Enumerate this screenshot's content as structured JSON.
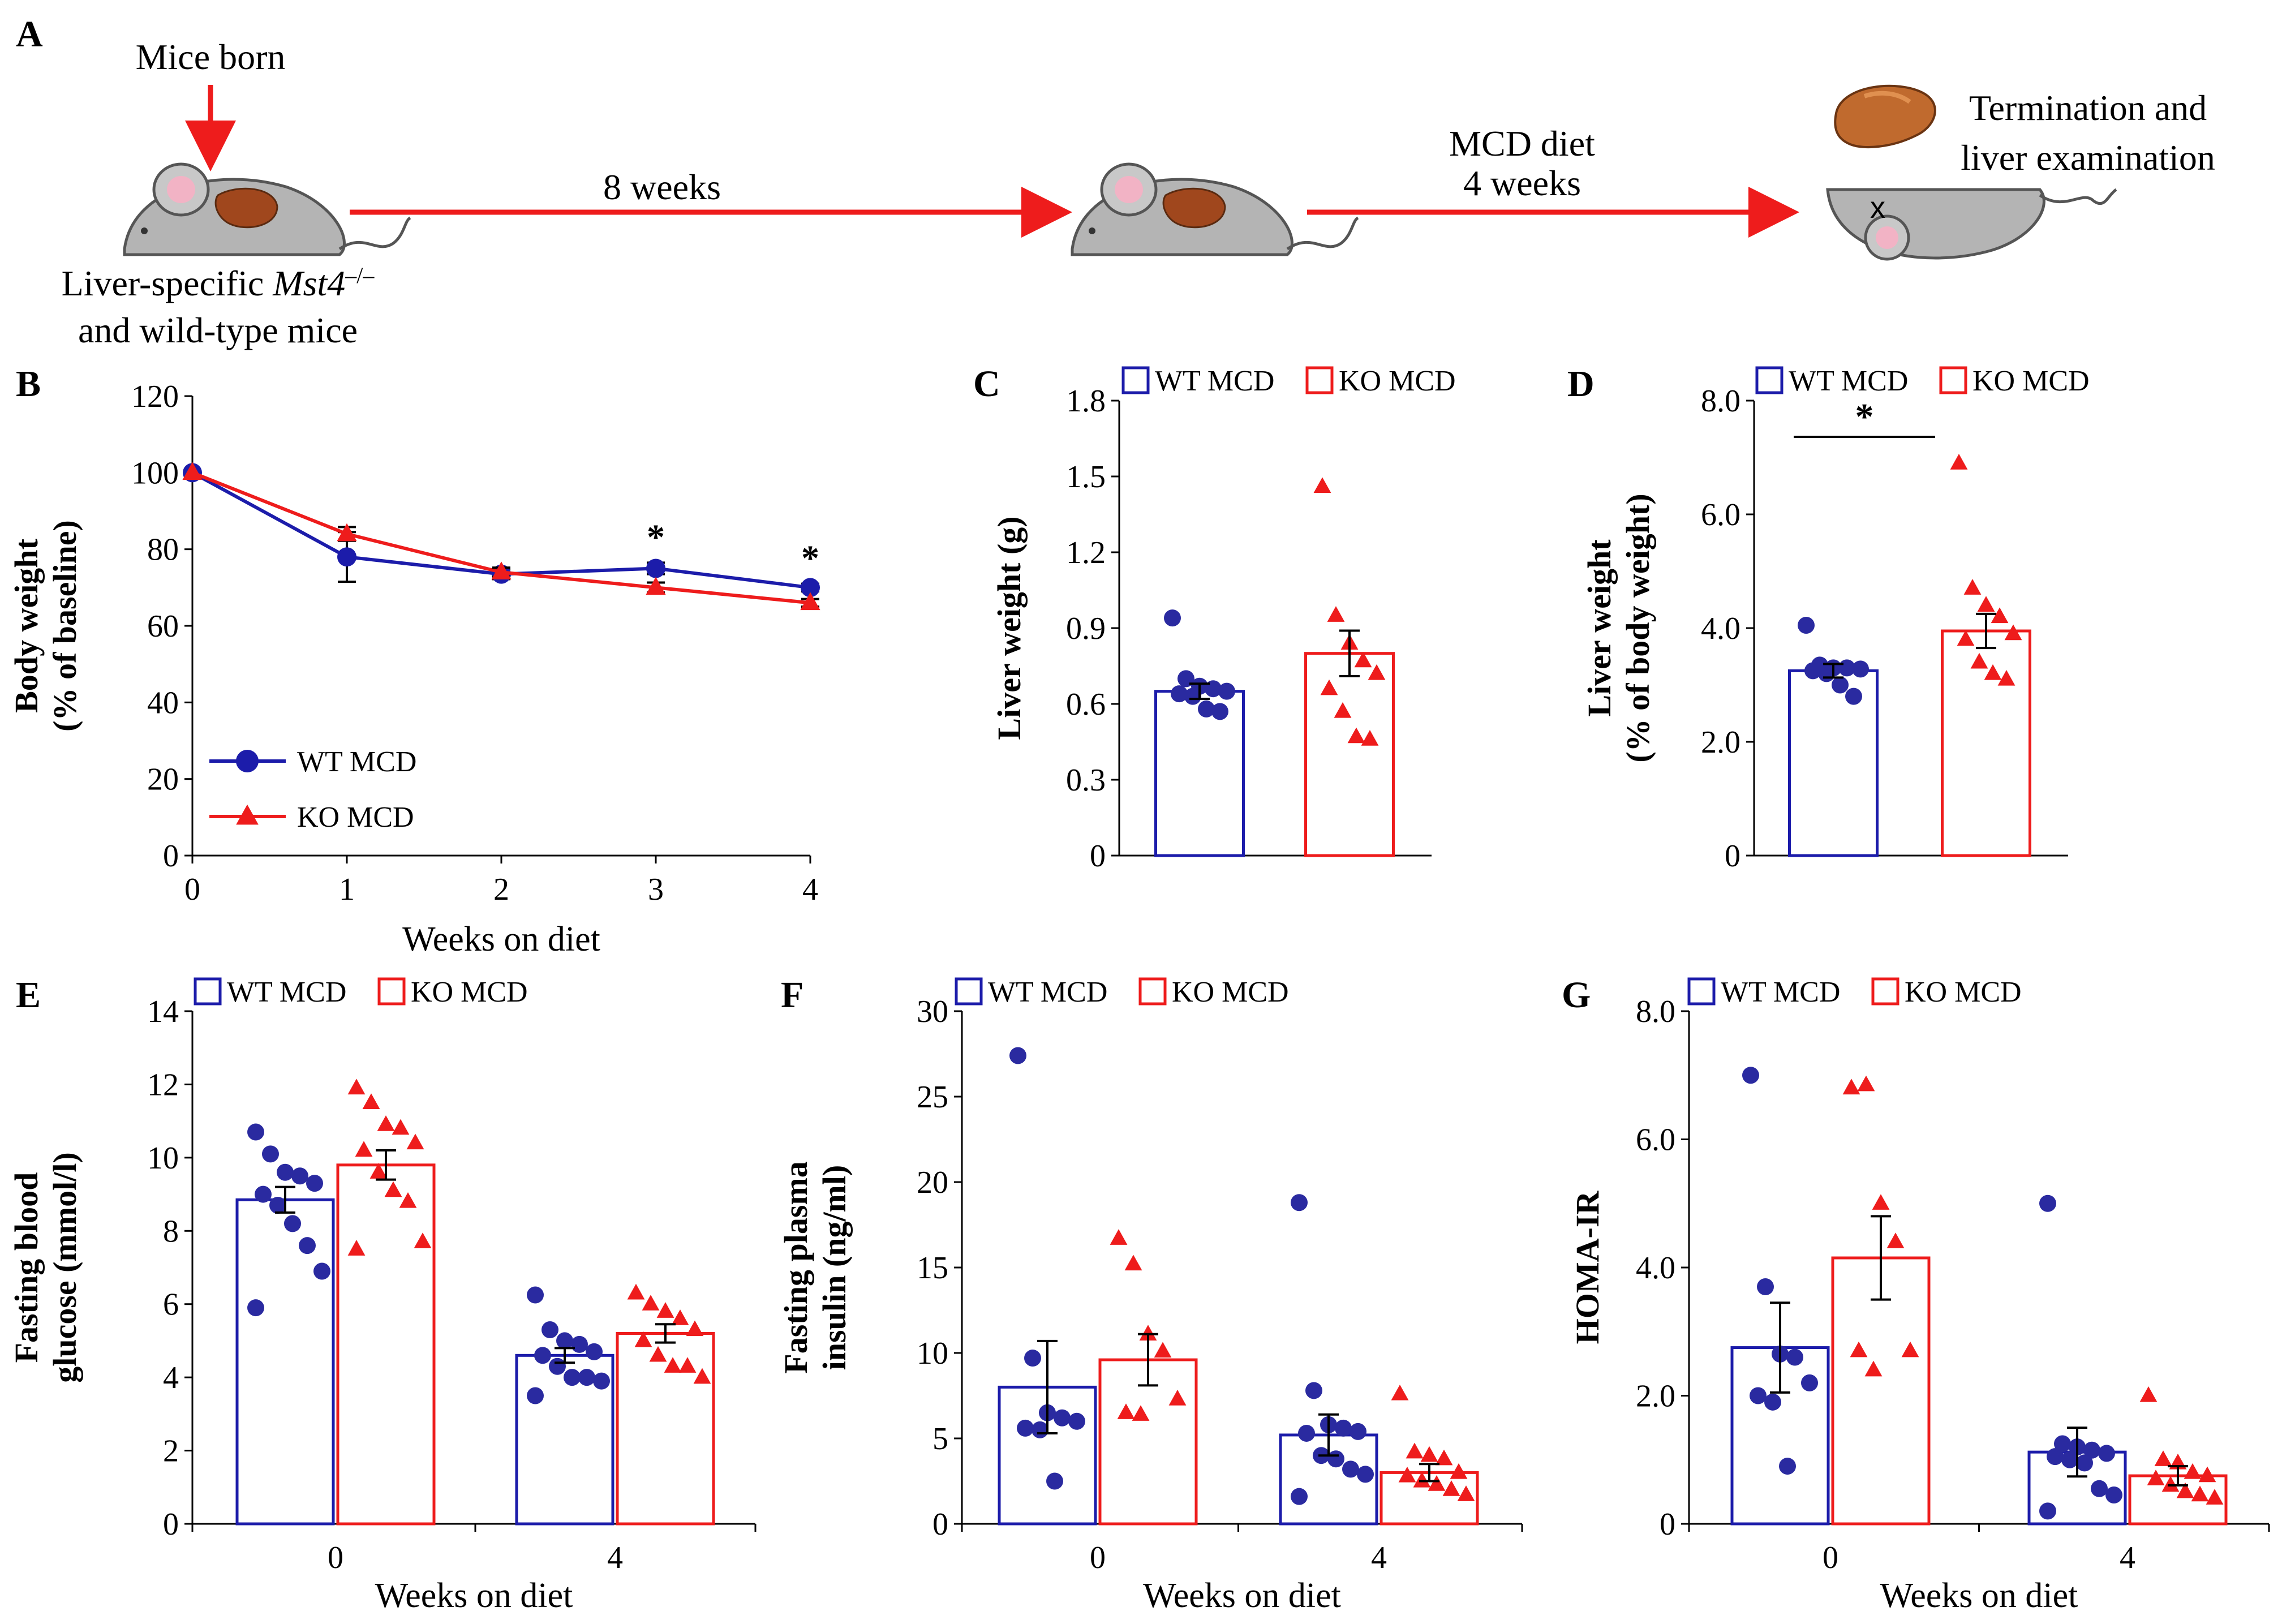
{
  "colors": {
    "wt": "#1c1caa",
    "ko": "#ee1c1c",
    "wt_point": "#2a2aa0",
    "ko_point": "#ee1c1c",
    "arrow": "#ee1c1c"
  },
  "panelA": {
    "letter": "A",
    "mice_born": "Mice born",
    "duration1": "8 weeks",
    "diet_line1": "MCD diet",
    "diet_line2": "4 weeks",
    "termination_line1": "Termination and",
    "termination_line2": "liver examination",
    "mice_line1_prefix": "Liver-specific ",
    "mice_line1_gene": "Mst4",
    "mice_line1_sup": "–/–",
    "mice_line2": "and wild-type mice"
  },
  "chart_data": [
    {
      "id": "B",
      "letter": "B",
      "type": "line",
      "title": "",
      "xlabel": "Weeks on diet",
      "ylabel_line1": "Body weight",
      "ylabel_line2": "(% of baseline)",
      "x": [
        0,
        1,
        2,
        3,
        4
      ],
      "xticks": [
        "0",
        "1",
        "2",
        "3",
        "4"
      ],
      "ylim": [
        0,
        120
      ],
      "yticks": [
        "0",
        "20",
        "40",
        "60",
        "80",
        "100",
        "120"
      ],
      "series": [
        {
          "name": "WT MCD",
          "values": [
            100,
            78,
            73.5,
            75,
            70
          ],
          "err": [
            0,
            6.5,
            1.3,
            1.5,
            1.0
          ],
          "marker": "circle"
        },
        {
          "name": "KO MCD",
          "values": [
            100,
            84,
            74,
            70,
            66
          ],
          "err": [
            0,
            1.8,
            1.2,
            1.3,
            1.0
          ],
          "marker": "triangle"
        }
      ],
      "significance": [
        {
          "x": 3,
          "label": "*"
        },
        {
          "x": 4,
          "label": "*"
        }
      ],
      "legend": "bottom-left"
    },
    {
      "id": "C",
      "letter": "C",
      "type": "bar",
      "ylabel_line1": "Liver weight (g)",
      "ylim": [
        0,
        1.8
      ],
      "yticks": [
        "0",
        "0.3",
        "0.6",
        "0.9",
        "1.2",
        "1.5",
        "1.8"
      ],
      "series_names": [
        "WT MCD",
        "KO MCD"
      ],
      "means": [
        0.65,
        0.8
      ],
      "sem": [
        0.03,
        0.09
      ],
      "points": [
        [
          0.94,
          0.7,
          0.67,
          0.66,
          0.65,
          0.64,
          0.63,
          0.58,
          0.57
        ],
        [
          1.46,
          0.95,
          0.84,
          0.77,
          0.72,
          0.66,
          0.57,
          0.47,
          0.46
        ]
      ],
      "legend": "top"
    },
    {
      "id": "D",
      "letter": "D",
      "type": "bar",
      "ylabel_line1": "Liver weight",
      "ylabel_line2": "(% of body weight)",
      "ylim": [
        0,
        8
      ],
      "yticks": [
        "0",
        "2.0",
        "4.0",
        "6.0",
        "8.0"
      ],
      "series_names": [
        "WT MCD",
        "KO MCD"
      ],
      "means": [
        3.25,
        3.95
      ],
      "sem": [
        0.12,
        0.3
      ],
      "points": [
        [
          4.05,
          3.35,
          3.3,
          3.3,
          3.28,
          3.25,
          3.2,
          3.0,
          2.8
        ],
        [
          6.9,
          4.7,
          4.4,
          4.2,
          3.9,
          3.8,
          3.4,
          3.2,
          3.1
        ]
      ],
      "significance_label": "*",
      "legend": "top"
    },
    {
      "id": "E",
      "letter": "E",
      "type": "bar",
      "xlabel": "Weeks on diet",
      "ylabel_line1": "Fasting blood",
      "ylabel_line2": "glucose (mmol/l)",
      "categories": [
        "0",
        "4"
      ],
      "ylim": [
        0,
        14
      ],
      "yticks": [
        "0",
        "2",
        "4",
        "6",
        "8",
        "10",
        "12",
        "14"
      ],
      "series": [
        {
          "name": "WT MCD",
          "values": [
            8.85,
            4.6
          ],
          "sem": [
            0.35,
            0.2
          ],
          "points": [
            [
              10.7,
              10.1,
              9.6,
              9.5,
              9.3,
              9.0,
              8.7,
              8.2,
              7.6,
              6.9,
              5.9
            ],
            [
              6.25,
              5.3,
              5.0,
              4.9,
              4.7,
              4.6,
              4.3,
              4.0,
              4.0,
              3.9,
              3.5
            ]
          ]
        },
        {
          "name": "KO MCD",
          "values": [
            9.8,
            5.2
          ],
          "sem": [
            0.4,
            0.25
          ],
          "points": [
            [
              11.9,
              11.5,
              10.9,
              10.8,
              10.4,
              10.2,
              9.6,
              9.1,
              8.8,
              7.7,
              7.5
            ],
            [
              6.3,
              6.0,
              5.8,
              5.6,
              5.3,
              5.0,
              4.6,
              4.3,
              4.3,
              4.0
            ]
          ]
        }
      ],
      "legend": "top"
    },
    {
      "id": "F",
      "letter": "F",
      "type": "bar",
      "xlabel": "Weeks on diet",
      "ylabel_line1": "Fasting plasma",
      "ylabel_line2": "insulin (ng/ml)",
      "categories": [
        "0",
        "4"
      ],
      "ylim": [
        0,
        30
      ],
      "yticks": [
        "0",
        "5",
        "10",
        "15",
        "20",
        "25",
        "30"
      ],
      "series": [
        {
          "name": "WT MCD",
          "values": [
            8.0,
            5.2
          ],
          "sem": [
            2.7,
            1.2
          ],
          "points": [
            [
              27.4,
              9.7,
              6.5,
              6.2,
              6.0,
              5.6,
              5.5,
              2.5
            ],
            [
              18.8,
              7.8,
              5.8,
              5.6,
              5.4,
              5.3,
              4.0,
              3.8,
              3.2,
              2.9,
              1.6
            ]
          ]
        },
        {
          "name": "KO MCD",
          "values": [
            9.6,
            3.0
          ],
          "sem": [
            1.5,
            0.5
          ],
          "points": [
            [
              16.7,
              15.2,
              11.1,
              10.1,
              7.3,
              6.5,
              6.4
            ],
            [
              7.6,
              4.2,
              4.0,
              3.8,
              3.0,
              2.8,
              2.5,
              2.3,
              2.0,
              1.7
            ]
          ]
        }
      ],
      "legend": "top"
    },
    {
      "id": "G",
      "letter": "G",
      "type": "bar",
      "xlabel": "Weeks on diet",
      "ylabel_line1": "HOMA-IR",
      "categories": [
        "0",
        "4"
      ],
      "ylim": [
        0,
        8
      ],
      "yticks": [
        "0",
        "2.0",
        "4.0",
        "6.0",
        "8.0"
      ],
      "series": [
        {
          "name": "WT MCD",
          "values": [
            2.75,
            1.12
          ],
          "sem": [
            0.7,
            0.38
          ],
          "points": [
            [
              7.0,
              3.7,
              2.65,
              2.6,
              2.2,
              2.0,
              1.9,
              0.9
            ],
            [
              5.0,
              1.25,
              1.2,
              1.15,
              1.1,
              1.05,
              1.0,
              0.95,
              0.55,
              0.45,
              0.2
            ]
          ]
        },
        {
          "name": "KO MCD",
          "values": [
            4.15,
            0.75
          ],
          "sem": [
            0.65,
            0.15
          ],
          "points": [
            [
              6.8,
              6.85,
              5.0,
              4.4,
              2.7,
              2.7,
              2.4
            ],
            [
              2.0,
              1.0,
              0.95,
              0.8,
              0.75,
              0.7,
              0.6,
              0.5,
              0.45,
              0.4
            ]
          ]
        }
      ],
      "legend": "top"
    }
  ]
}
